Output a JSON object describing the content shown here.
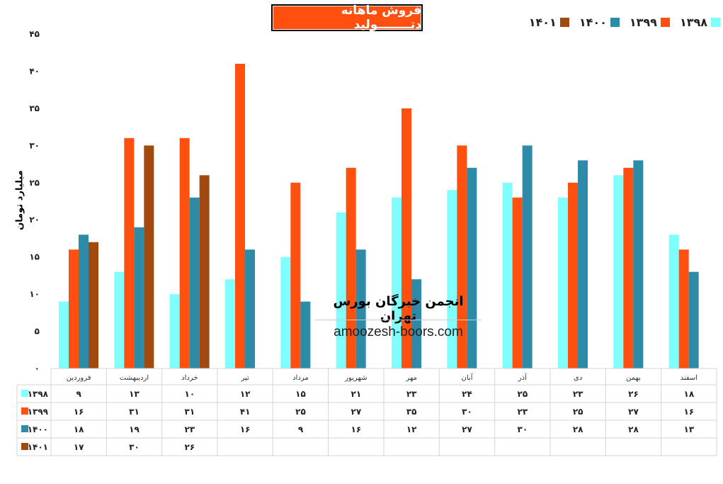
{
  "chart_data": {
    "type": "bar",
    "title": "فروش ماهانه دتــــــــولید",
    "ylabel": "میلیارد تومان",
    "xlabel": "",
    "ylim": [
      0,
      45
    ],
    "yticks": [
      0,
      5,
      10,
      15,
      20,
      25,
      30,
      35,
      40,
      45
    ],
    "grid": false,
    "legend_position": "top-right",
    "categories": [
      "فروردین",
      "اردیبهشت",
      "خرداد",
      "تیر",
      "مرداد",
      "شهریور",
      "مهر",
      "آبان",
      "آذر",
      "دی",
      "بهمن",
      "اسفند"
    ],
    "series": [
      {
        "name": "۱۳۹۸",
        "color": "#80FFFF",
        "values": [
          9,
          13,
          10,
          12,
          15,
          21,
          23,
          24,
          25,
          23,
          26,
          18
        ]
      },
      {
        "name": "۱۳۹۹",
        "color": "#FF5010",
        "values": [
          16,
          31,
          31,
          41,
          25,
          27,
          35,
          30,
          23,
          25,
          27,
          16
        ]
      },
      {
        "name": "۱۴۰۰",
        "color": "#2E8BA8",
        "values": [
          18,
          19,
          23,
          16,
          9,
          16,
          12,
          27,
          30,
          28,
          28,
          13
        ]
      },
      {
        "name": "۱۴۰۱",
        "color": "#A04A10",
        "values": [
          17,
          30,
          26,
          null,
          null,
          null,
          null,
          null,
          null,
          null,
          null,
          null
        ]
      }
    ],
    "data_table": true
  },
  "watermark": {
    "org": "انجمن خبرگان بورس تهران",
    "site": "amoozesh-boors.com"
  }
}
